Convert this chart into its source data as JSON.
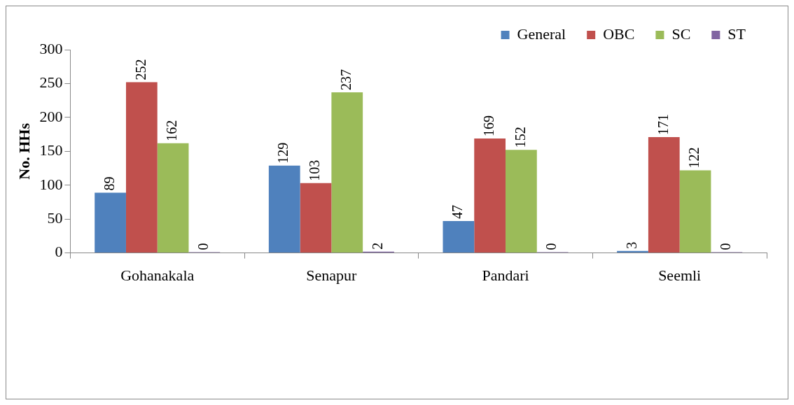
{
  "chart_data": {
    "type": "bar",
    "ylabel": "No. HHs",
    "categories": [
      "Gohanakala",
      "Senapur",
      "Pandari",
      "Seemli"
    ],
    "series": [
      {
        "name": "General",
        "color": "#4f81bd",
        "values": [
          89,
          129,
          47,
          3
        ]
      },
      {
        "name": "OBC",
        "color": "#c0504d",
        "values": [
          252,
          103,
          169,
          171
        ]
      },
      {
        "name": "SC",
        "color": "#9bbb59",
        "values": [
          162,
          237,
          152,
          122
        ]
      },
      {
        "name": "ST",
        "color": "#8064a2",
        "values": [
          0,
          2,
          0,
          0
        ]
      }
    ],
    "ylim": [
      0,
      300
    ],
    "yticks": [
      0,
      50,
      100,
      150,
      200,
      250,
      300
    ],
    "grid": false,
    "legend": "top right",
    "data_labels": true
  }
}
